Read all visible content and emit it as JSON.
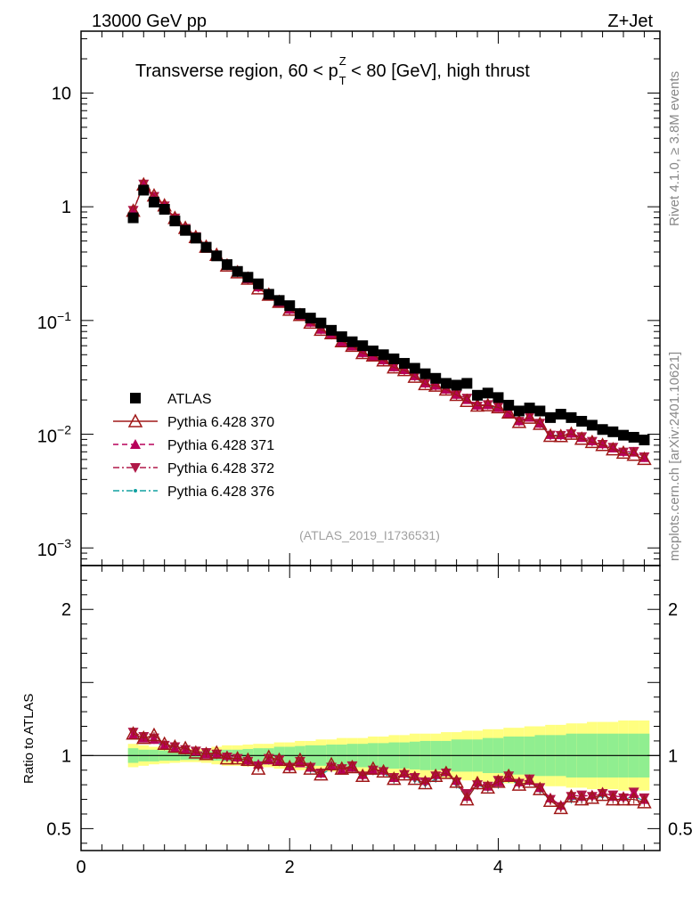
{
  "header": {
    "left": "13000 GeV pp",
    "right": "Z+Jet",
    "title_main": "Transverse region, 60 < p",
    "title_sup": "Z",
    "title_sub": "T",
    "title_tail": " < 80 [GeV], high thrust",
    "side_rivet": "Rivet 4.1.0, ≥ 3.8M events",
    "side_mcplots": "mcplots.cern.ch [arXiv:2401.10621]",
    "analysis_tag": "(ATLAS_2019_I1736531)"
  },
  "axes": {
    "main": {
      "ylim": [
        0.0007,
        35
      ],
      "yscale": "log",
      "ticks": [
        {
          "v": 10,
          "label": "10"
        },
        {
          "v": 1,
          "label": "1"
        },
        {
          "v": 0.1,
          "base": "10",
          "exp": "−1"
        },
        {
          "v": 0.01,
          "base": "10",
          "exp": "−2"
        },
        {
          "v": 0.001,
          "base": "10",
          "exp": "−3"
        }
      ]
    },
    "ratio": {
      "ylabel": "Ratio to ATLAS",
      "ylim": [
        0.35,
        2.3
      ],
      "ticks": [
        {
          "v": 0.5,
          "label": "0.5"
        },
        {
          "v": 1,
          "label": "1"
        },
        {
          "v": 2,
          "label": "2"
        }
      ]
    },
    "x": {
      "xlim": [
        0,
        5.55
      ],
      "ticks": [
        {
          "v": 0,
          "label": "0"
        },
        {
          "v": 2,
          "label": "2"
        },
        {
          "v": 4,
          "label": "4"
        }
      ]
    }
  },
  "legend": [
    {
      "label": "ATLAS",
      "color": "#000000",
      "marker": "square",
      "line": "none"
    },
    {
      "label": "Pythia 6.428 370",
      "color": "#a01818",
      "marker": "triangle-open",
      "line": "solid"
    },
    {
      "label": "Pythia 6.428 371",
      "color": "#b8005a",
      "marker": "triangle",
      "line": "dashed"
    },
    {
      "label": "Pythia 6.428 372",
      "color": "#b01848",
      "marker": "triangle-down",
      "line": "dashdot"
    },
    {
      "label": "Pythia 6.428 376",
      "color": "#10a0a0",
      "marker": "dot",
      "line": "dashdot"
    }
  ],
  "chart_data": {
    "type": "scatter",
    "title": "Transverse region, 60 < pT^Z < 80 [GeV], high thrust",
    "xlim": [
      0,
      5.55
    ],
    "ylim": [
      0.0007,
      35
    ],
    "x": [
      0.5,
      0.6,
      0.7,
      0.8,
      0.9,
      1.0,
      1.1,
      1.2,
      1.3,
      1.4,
      1.5,
      1.6,
      1.7,
      1.8,
      1.9,
      2.0,
      2.1,
      2.2,
      2.3,
      2.4,
      2.5,
      2.6,
      2.7,
      2.8,
      2.9,
      3.0,
      3.1,
      3.2,
      3.3,
      3.4,
      3.5,
      3.6,
      3.7,
      3.8,
      3.9,
      4.0,
      4.1,
      4.2,
      4.3,
      4.4,
      4.5,
      4.6,
      4.7,
      4.8,
      4.9,
      5.0,
      5.1,
      5.2,
      5.3,
      5.4
    ],
    "series": [
      {
        "name": "ATLAS",
        "values": [
          0.8,
          1.4,
          1.1,
          0.95,
          0.75,
          0.62,
          0.53,
          0.44,
          0.37,
          0.31,
          0.27,
          0.24,
          0.21,
          0.17,
          0.15,
          0.135,
          0.115,
          0.105,
          0.095,
          0.082,
          0.072,
          0.065,
          0.06,
          0.054,
          0.05,
          0.046,
          0.042,
          0.038,
          0.034,
          0.031,
          0.028,
          0.027,
          0.028,
          0.022,
          0.023,
          0.021,
          0.018,
          0.016,
          0.017,
          0.016,
          0.014,
          0.015,
          0.014,
          0.013,
          0.012,
          0.011,
          0.0105,
          0.0098,
          0.0094,
          0.0089
        ],
        "band": [
          0.05,
          0.04,
          0.04,
          0.035,
          0.035,
          0.03,
          0.03,
          0.03,
          0.035,
          0.04,
          0.04,
          0.045,
          0.05,
          0.05,
          0.06,
          0.06,
          0.065,
          0.07,
          0.07,
          0.075,
          0.075,
          0.08,
          0.08,
          0.085,
          0.085,
          0.09,
          0.09,
          0.095,
          0.1,
          0.1,
          0.1,
          0.11,
          0.11,
          0.11,
          0.12,
          0.12,
          0.13,
          0.13,
          0.13,
          0.14,
          0.14,
          0.14,
          0.15,
          0.15,
          0.15,
          0.15,
          0.15,
          0.15,
          0.15,
          0.15
        ],
        "band_total": [
          0.08,
          0.07,
          0.06,
          0.055,
          0.05,
          0.045,
          0.045,
          0.05,
          0.06,
          0.07,
          0.07,
          0.075,
          0.08,
          0.08,
          0.09,
          0.09,
          0.1,
          0.1,
          0.11,
          0.11,
          0.12,
          0.12,
          0.12,
          0.13,
          0.13,
          0.14,
          0.14,
          0.15,
          0.15,
          0.15,
          0.16,
          0.16,
          0.17,
          0.17,
          0.18,
          0.18,
          0.19,
          0.19,
          0.2,
          0.2,
          0.21,
          0.21,
          0.22,
          0.22,
          0.23,
          0.23,
          0.23,
          0.24,
          0.24,
          0.24
        ]
      },
      {
        "name": "Pythia 6.428 370",
        "ratio": [
          1.15,
          1.12,
          1.14,
          1.08,
          1.06,
          1.05,
          1.02,
          1.01,
          1.02,
          0.98,
          0.98,
          0.97,
          0.91,
          0.99,
          0.97,
          0.92,
          0.97,
          0.91,
          0.87,
          0.94,
          0.91,
          0.92,
          0.86,
          0.91,
          0.89,
          0.84,
          0.87,
          0.84,
          0.81,
          0.86,
          0.88,
          0.82,
          0.7,
          0.81,
          0.78,
          0.82,
          0.86,
          0.8,
          0.82,
          0.77,
          0.69,
          0.64,
          0.72,
          0.7,
          0.71,
          0.73,
          0.7,
          0.7,
          0.7,
          0.68
        ]
      },
      {
        "name": "Pythia 6.428 371",
        "ratio": [
          1.14,
          1.12,
          1.11,
          1.07,
          1.05,
          1.04,
          1.03,
          1.01,
          1.01,
          1.0,
          0.99,
          0.97,
          0.94,
          0.97,
          0.96,
          0.93,
          0.95,
          0.92,
          0.88,
          0.93,
          0.9,
          0.92,
          0.87,
          0.9,
          0.9,
          0.85,
          0.88,
          0.86,
          0.83,
          0.87,
          0.89,
          0.83,
          0.72,
          0.82,
          0.79,
          0.82,
          0.85,
          0.82,
          0.83,
          0.78,
          0.71,
          0.66,
          0.73,
          0.72,
          0.73,
          0.75,
          0.72,
          0.72,
          0.74,
          0.7
        ]
      },
      {
        "name": "Pythia 6.428 372",
        "ratio": [
          1.16,
          1.13,
          1.12,
          1.07,
          1.06,
          1.04,
          1.03,
          1.02,
          1.01,
          0.99,
          0.98,
          0.96,
          0.93,
          0.98,
          0.97,
          0.92,
          0.96,
          0.92,
          0.88,
          0.92,
          0.91,
          0.93,
          0.86,
          0.9,
          0.89,
          0.85,
          0.87,
          0.85,
          0.82,
          0.86,
          0.88,
          0.82,
          0.74,
          0.8,
          0.79,
          0.83,
          0.86,
          0.81,
          0.84,
          0.78,
          0.7,
          0.65,
          0.72,
          0.73,
          0.72,
          0.74,
          0.73,
          0.71,
          0.75,
          0.71
        ]
      },
      {
        "name": "Pythia 6.428 376",
        "ratio": [
          1.13,
          1.11,
          1.1,
          1.06,
          1.05,
          1.03,
          1.02,
          1.01,
          1.0,
          0.98,
          0.97,
          0.96,
          0.93,
          0.96,
          0.95,
          0.91,
          0.95,
          0.9,
          0.87,
          0.91,
          0.9,
          0.91,
          0.85,
          0.89,
          0.88,
          0.83,
          0.86,
          0.83,
          0.8,
          0.84,
          0.87,
          0.8,
          0.71,
          0.8,
          0.77,
          0.8,
          0.84,
          0.8,
          0.82,
          0.76,
          0.69,
          0.66,
          0.7,
          0.7,
          0.71,
          0.72,
          0.71,
          0.7,
          0.72,
          0.69
        ]
      }
    ]
  }
}
